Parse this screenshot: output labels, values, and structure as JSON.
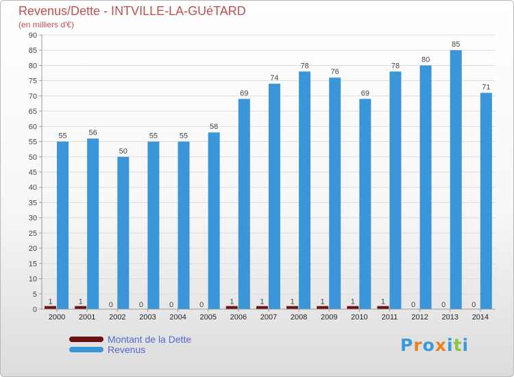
{
  "title": "Revenus/Dette - INTVILLE-LA-GUéTARD",
  "subtitle": "(en milliers d'€)",
  "logo": {
    "text": "Proxiti",
    "letter_colors": [
      "#3a9ad9",
      "#e8821e",
      "#3a9ad9",
      "#e8821e",
      "#3a9ad9",
      "#8bc34a",
      "#3a9ad9"
    ]
  },
  "chart_data": {
    "type": "bar",
    "categories": [
      "2000",
      "2001",
      "2002",
      "2003",
      "2004",
      "2005",
      "2006",
      "2007",
      "2008",
      "2009",
      "2010",
      "2011",
      "2012",
      "2013",
      "2014"
    ],
    "series": [
      {
        "name": "Montant de la Dette",
        "color": "#6b1111",
        "values": [
          1,
          1,
          0,
          0,
          0,
          0,
          1,
          1,
          1,
          1,
          1,
          1,
          0,
          0,
          0
        ]
      },
      {
        "name": "Revenus",
        "color": "#3b95d9",
        "values": [
          55,
          56,
          50,
          55,
          55,
          58,
          69,
          74,
          78,
          76,
          69,
          78,
          80,
          85,
          71
        ]
      }
    ],
    "ylim": [
      0,
      90
    ],
    "yticks": [
      0,
      5,
      10,
      15,
      20,
      25,
      30,
      35,
      40,
      45,
      50,
      55,
      60,
      65,
      70,
      75,
      80,
      85,
      90
    ],
    "grid": true,
    "legend_position": "bottom-left"
  }
}
